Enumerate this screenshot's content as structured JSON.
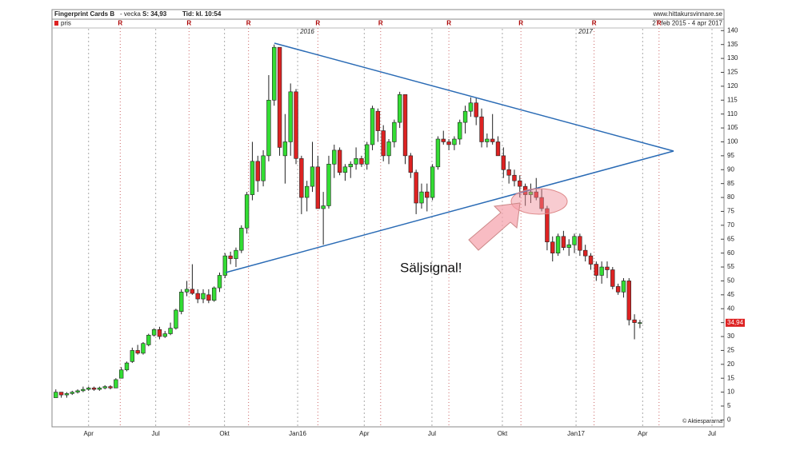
{
  "chart_data": {
    "type": "candlestick",
    "title": "Fingerprint Cards B",
    "subtitle": "- vecka",
    "last_info": "S: 34,93",
    "time_info": "Tid: kl. 10:54",
    "source": "www.hittakursvinnare.se",
    "date_range": "27 feb 2015 - 4 apr 2017",
    "series_name": "pris",
    "credit": "© Aktiespararna",
    "annotation": "Säljsignal!",
    "year_labels": [
      {
        "value": 44.3,
        "label": "2016"
      },
      {
        "value": 95.3,
        "label": "2017"
      }
    ],
    "report_label": "R",
    "report_x": [
      11.8,
      24.4,
      35.3,
      48.0,
      59.5,
      72.0,
      85.2,
      98.6,
      110.5
    ],
    "last_price": {
      "value": 34.94,
      "label": "34,94"
    },
    "up_color": "#33dd33",
    "down_color": "#dd2222",
    "x": [
      0,
      1,
      2,
      3,
      4,
      5,
      6,
      7,
      8,
      9,
      10,
      11,
      12,
      13,
      14,
      15,
      16,
      17,
      18,
      19,
      20,
      21,
      22,
      23,
      24,
      25,
      26,
      27,
      28,
      29,
      30,
      31,
      32,
      33,
      34,
      35,
      36,
      37,
      38,
      39,
      40,
      41,
      42,
      43,
      44,
      45,
      46,
      47,
      48,
      49,
      50,
      51,
      52,
      53,
      54,
      55,
      56,
      57,
      58,
      59,
      60,
      61,
      62,
      63,
      64,
      65,
      66,
      67,
      68,
      69,
      70,
      71,
      72,
      73,
      74,
      75,
      76,
      77,
      78,
      79,
      80,
      81,
      82,
      83,
      84,
      85,
      86,
      87,
      88,
      89,
      90,
      91,
      92,
      93,
      94,
      95,
      96,
      97,
      98,
      99,
      100,
      101,
      102,
      103,
      104,
      105,
      106,
      107
    ],
    "open": [
      8,
      10,
      9,
      9.5,
      10,
      10.5,
      11,
      11.5,
      11,
      11.5,
      12,
      11.5,
      15,
      18,
      21,
      25,
      24,
      27,
      30.5,
      32.5,
      30,
      31,
      33,
      39,
      46,
      47,
      45.5,
      43.5,
      45,
      43,
      47.5,
      52,
      59,
      58,
      61,
      69,
      81,
      93,
      86,
      95,
      115,
      134,
      95,
      100,
      118,
      94,
      80,
      84,
      91,
      76,
      77,
      92,
      97,
      89,
      91,
      92,
      94,
      92,
      99,
      111,
      104,
      95,
      100,
      107,
      117,
      95,
      89,
      78,
      82,
      80,
      91,
      101,
      100,
      99,
      101,
      107,
      111,
      114,
      109,
      100,
      101,
      100,
      95,
      90,
      88,
      86,
      84,
      81,
      82,
      80,
      76,
      64,
      60,
      66,
      62,
      63,
      66,
      61,
      59,
      56,
      52,
      55,
      54,
      48,
      46,
      50,
      36,
      35
    ],
    "high": [
      11,
      10,
      10,
      10.5,
      11,
      12,
      12,
      12,
      12,
      12.5,
      12.5,
      15,
      19,
      21,
      26,
      27,
      28,
      31,
      33,
      33.5,
      32,
      35,
      40,
      47,
      50,
      56,
      47,
      47,
      47,
      48,
      53,
      60,
      60.5,
      62,
      70,
      82,
      100,
      95,
      97,
      124,
      135,
      134,
      110,
      121,
      119,
      95,
      86,
      100,
      95,
      82,
      95,
      99,
      98,
      92,
      93,
      98,
      95,
      100,
      113,
      112,
      106,
      101,
      108,
      118,
      117,
      96,
      90,
      85,
      85,
      92,
      102,
      104,
      101,
      102,
      108,
      113,
      116,
      116,
      112,
      103,
      110,
      102,
      98,
      93,
      90,
      88,
      85,
      85,
      87,
      83,
      77,
      66,
      67,
      68,
      65,
      67,
      67,
      63,
      60,
      57,
      57,
      57,
      55,
      49,
      51,
      51,
      38,
      36
    ],
    "low": [
      8,
      8,
      8,
      9,
      9.5,
      10,
      10.5,
      10.5,
      10.5,
      11,
      11,
      11.5,
      15,
      17.5,
      20.5,
      23.5,
      23.5,
      26.5,
      30,
      29,
      29.5,
      30.5,
      32.5,
      38,
      44.5,
      45,
      42,
      42,
      42,
      42.5,
      46,
      51,
      56,
      55,
      60,
      67,
      79,
      82,
      84,
      93,
      113,
      95,
      85,
      95,
      92,
      74,
      75,
      82,
      76,
      63,
      76,
      87,
      88,
      86,
      87,
      90,
      91,
      90,
      97,
      100,
      93,
      92,
      98,
      105,
      92,
      87,
      74,
      76,
      75,
      79,
      90,
      99,
      97,
      97,
      99,
      103,
      109,
      106,
      98,
      98,
      99,
      95,
      87,
      85,
      84,
      80,
      77,
      78,
      79,
      75,
      61,
      57,
      59,
      61,
      59,
      60,
      59,
      57,
      54,
      50,
      49,
      51,
      47,
      45,
      44,
      34,
      29,
      33
    ],
    "close": [
      10,
      9,
      9.5,
      10,
      10.5,
      11,
      11.5,
      11,
      11.5,
      12,
      11.5,
      14.5,
      18,
      20.5,
      25,
      24,
      27.5,
      30.5,
      32.5,
      30,
      31,
      33,
      39.5,
      46,
      47,
      45.5,
      43.5,
      45.5,
      43,
      47.5,
      52,
      59,
      58,
      61,
      69,
      81,
      93,
      86,
      95,
      115,
      134,
      98,
      100,
      118,
      94,
      80,
      84,
      91,
      76,
      77,
      92,
      97,
      89,
      91,
      92,
      94,
      92,
      99,
      112,
      104,
      95,
      100,
      107,
      117,
      95,
      89,
      78,
      82,
      80,
      91,
      101,
      100,
      99,
      101,
      107,
      111,
      114,
      109,
      100,
      101,
      100,
      95,
      90,
      88,
      86,
      84,
      81,
      82,
      80,
      76,
      64,
      60,
      66,
      62,
      63,
      66,
      61,
      59,
      56,
      52,
      55,
      54,
      48,
      46,
      50,
      36,
      35,
      35
    ],
    "xlim": [
      -0.7,
      122.4
    ],
    "xticks": [
      {
        "value": 6.0,
        "label": "Apr"
      },
      {
        "value": 18.3,
        "label": "Jul"
      },
      {
        "value": 30.9,
        "label": "Okt"
      },
      {
        "value": 44.3,
        "label": "Jan16"
      },
      {
        "value": 56.5,
        "label": "Apr"
      },
      {
        "value": 68.9,
        "label": "Jul"
      },
      {
        "value": 81.8,
        "label": "Okt"
      },
      {
        "value": 95.3,
        "label": "Jan17"
      },
      {
        "value": 107.5,
        "label": "Apr"
      },
      {
        "value": 120.2,
        "label": "Jul"
      }
    ],
    "ylim": [
      0,
      140
    ],
    "yticks": [
      0,
      5,
      10,
      15,
      20,
      25,
      30,
      35,
      40,
      45,
      50,
      55,
      60,
      65,
      70,
      75,
      80,
      85,
      90,
      95,
      100,
      105,
      110,
      115,
      120,
      125,
      130,
      135,
      140
    ],
    "grid": true
  }
}
